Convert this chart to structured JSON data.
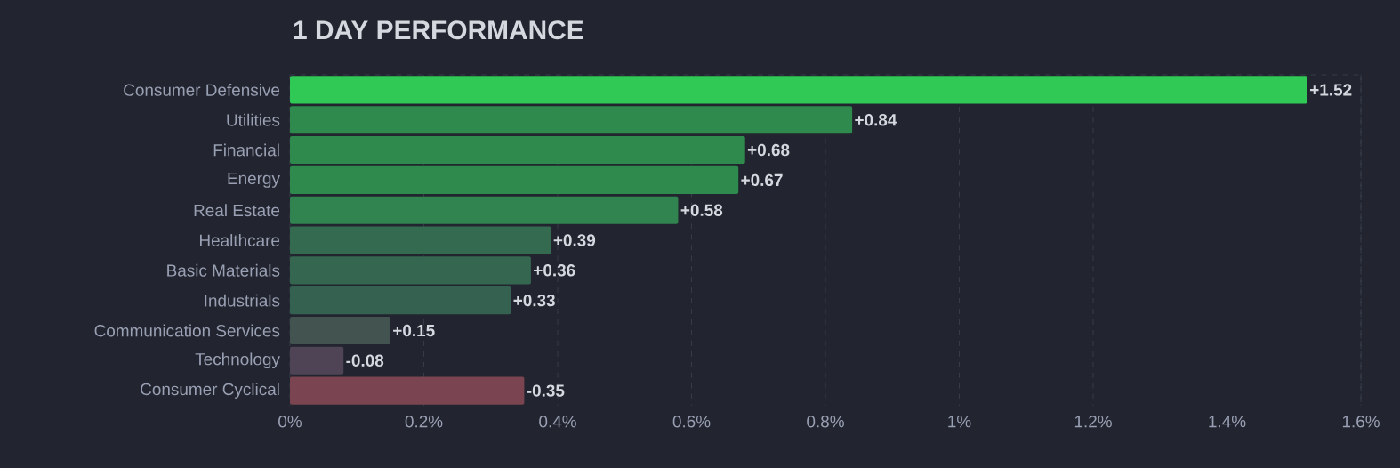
{
  "chart_data": {
    "type": "bar",
    "orientation": "horizontal",
    "title": "1 DAY PERFORMANCE",
    "categories": [
      "Consumer Defensive",
      "Utilities",
      "Financial",
      "Energy",
      "Real Estate",
      "Healthcare",
      "Basic Materials",
      "Industrials",
      "Communication Services",
      "Technology",
      "Consumer Cyclical"
    ],
    "values": [
      1.52,
      0.84,
      0.68,
      0.67,
      0.58,
      0.39,
      0.36,
      0.33,
      0.15,
      -0.08,
      -0.35
    ],
    "base": [
      0,
      0,
      0,
      0,
      0,
      0,
      0,
      0,
      0,
      0.08,
      0.35
    ],
    "value_labels": [
      "+1.52",
      "+0.84",
      "+0.68",
      "+0.67",
      "+0.58",
      "+0.39",
      "+0.36",
      "+0.33",
      "+0.15",
      "-0.08",
      "-0.35"
    ],
    "colors": [
      "#30c956",
      "#2f8a4e",
      "#2f8a4e",
      "#2f8a4e",
      "#318350",
      "#346a50",
      "#356650",
      "#356150",
      "#43534f",
      "#4f4456",
      "#7a4550"
    ],
    "xlim": [
      0,
      1.6
    ],
    "xticks": [
      {
        "value": 0,
        "label": "0%"
      },
      {
        "value": 0.2,
        "label": "0.2%"
      },
      {
        "value": 0.4,
        "label": "0.4%"
      },
      {
        "value": 0.6,
        "label": "0.6%"
      },
      {
        "value": 0.8,
        "label": "0.8%"
      },
      {
        "value": 1,
        "label": "1%"
      },
      {
        "value": 1.2,
        "label": "1.2%"
      },
      {
        "value": 1.4,
        "label": "1.4%"
      },
      {
        "value": 1.6,
        "label": "1.6%"
      }
    ],
    "grid": "x"
  }
}
